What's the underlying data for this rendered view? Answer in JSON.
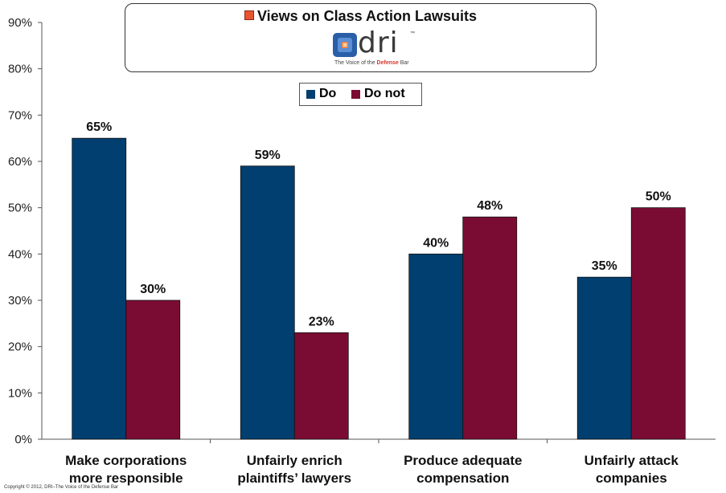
{
  "chart_data": {
    "type": "bar",
    "title": "Views on Class Action Lawsuits",
    "categories": [
      [
        "Make corporations",
        "more responsible"
      ],
      [
        "Unfairly enrich",
        "plaintiffs’ lawyers"
      ],
      [
        "Produce adequate",
        "compensation"
      ],
      [
        "Unfairly attack",
        "companies"
      ]
    ],
    "series": [
      {
        "name": "Do",
        "color": "#003f6f",
        "values": [
          65,
          59,
          40,
          35
        ]
      },
      {
        "name": "Do not",
        "color": "#7a0c33",
        "values": [
          30,
          23,
          48,
          50
        ]
      }
    ],
    "ylim": [
      0,
      90
    ],
    "yticks": [
      "0%",
      "10%",
      "20%",
      "30%",
      "40%",
      "50%",
      "60%",
      "70%",
      "80%",
      "90%"
    ],
    "value_suffix": "%",
    "legend_placement": "top-center",
    "grid": false
  },
  "logo": {
    "word": "dri",
    "tm": "™",
    "tagline_pre": "The Voice of the ",
    "tagline_highlight": "Defense",
    "tagline_post": " Bar"
  },
  "copyright": "Copyright © 2012, DRI–The Voice of the Defense Bar"
}
